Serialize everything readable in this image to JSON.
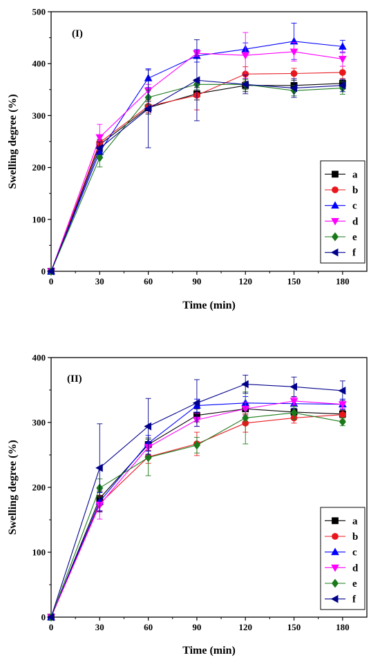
{
  "chart_data": [
    {
      "type": "line",
      "panel_label": "(I)",
      "xlabel": "Time (min)",
      "ylabel": "Swelling degree (%)",
      "xlim": [
        0,
        195
      ],
      "ylim": [
        0,
        500
      ],
      "xticks": [
        0,
        30,
        60,
        90,
        120,
        150,
        180
      ],
      "yticks": [
        0,
        100,
        200,
        300,
        400,
        500
      ],
      "x": [
        0,
        30,
        60,
        90,
        120,
        150,
        180
      ],
      "legend_position": "bottom-right",
      "series": [
        {
          "name": "a",
          "color": "#000000",
          "marker": "square",
          "values": [
            0,
            244,
            315,
            342,
            358,
            358,
            362
          ],
          "errors": [
            0,
            10,
            12,
            12,
            12,
            10,
            8
          ]
        },
        {
          "name": "b",
          "color": "#e8171e",
          "marker": "circle",
          "values": [
            0,
            248,
            318,
            339,
            380,
            381,
            383
          ],
          "errors": [
            0,
            12,
            12,
            28,
            14,
            10,
            12
          ]
        },
        {
          "name": "c",
          "color": "#0000ff",
          "marker": "triangle-up",
          "values": [
            0,
            230,
            372,
            415,
            428,
            443,
            433
          ],
          "errors": [
            0,
            8,
            18,
            12,
            12,
            35,
            12
          ]
        },
        {
          "name": "d",
          "color": "#ff00ff",
          "marker": "triangle-down",
          "values": [
            0,
            258,
            348,
            420,
            416,
            423,
            409
          ],
          "errors": [
            0,
            25,
            12,
            6,
            44,
            18,
            14
          ]
        },
        {
          "name": "e",
          "color": "#1a7a1a",
          "marker": "diamond",
          "values": [
            0,
            219,
            335,
            360,
            360,
            348,
            353
          ],
          "errors": [
            0,
            18,
            14,
            10,
            10,
            10,
            12
          ]
        },
        {
          "name": "f",
          "color": "#00008b",
          "marker": "triangle-left",
          "values": [
            0,
            237,
            313,
            368,
            360,
            353,
            358
          ],
          "errors": [
            0,
            12,
            75,
            78,
            18,
            18,
            12
          ]
        }
      ]
    },
    {
      "type": "line",
      "panel_label": "(II)",
      "xlabel": "Time (min)",
      "ylabel": "Swelling degree (%)",
      "xlim": [
        0,
        195
      ],
      "ylim": [
        0,
        400
      ],
      "xticks": [
        0,
        30,
        60,
        90,
        120,
        150,
        180
      ],
      "yticks": [
        0,
        100,
        200,
        300,
        400
      ],
      "x": [
        0,
        30,
        60,
        90,
        120,
        150,
        180
      ],
      "legend_position": "bottom-right",
      "series": [
        {
          "name": "a",
          "color": "#000000",
          "marker": "square",
          "values": [
            0,
            183,
            266,
            311,
            321,
            316,
            313
          ],
          "errors": [
            0,
            10,
            10,
            10,
            8,
            6,
            6
          ]
        },
        {
          "name": "b",
          "color": "#e8171e",
          "marker": "circle",
          "values": [
            0,
            175,
            247,
            267,
            299,
            307,
            312
          ],
          "errors": [
            0,
            12,
            10,
            18,
            14,
            8,
            8
          ]
        },
        {
          "name": "c",
          "color": "#0000ff",
          "marker": "triangle-up",
          "values": [
            0,
            178,
            268,
            326,
            330,
            329,
            328
          ],
          "errors": [
            0,
            14,
            12,
            10,
            10,
            8,
            8
          ]
        },
        {
          "name": "d",
          "color": "#ff00ff",
          "marker": "triangle-down",
          "values": [
            0,
            173,
            262,
            304,
            321,
            333,
            328
          ],
          "errors": [
            0,
            22,
            12,
            10,
            10,
            6,
            6
          ]
        },
        {
          "name": "e",
          "color": "#1a7a1a",
          "marker": "diamond",
          "values": [
            0,
            199,
            246,
            265,
            307,
            315,
            301
          ],
          "errors": [
            0,
            14,
            28,
            12,
            40,
            10,
            6
          ]
        },
        {
          "name": "f",
          "color": "#00008b",
          "marker": "triangle-left",
          "values": [
            0,
            230,
            294,
            330,
            359,
            355,
            349
          ],
          "errors": [
            0,
            68,
            43,
            36,
            14,
            15,
            15
          ]
        }
      ]
    }
  ]
}
